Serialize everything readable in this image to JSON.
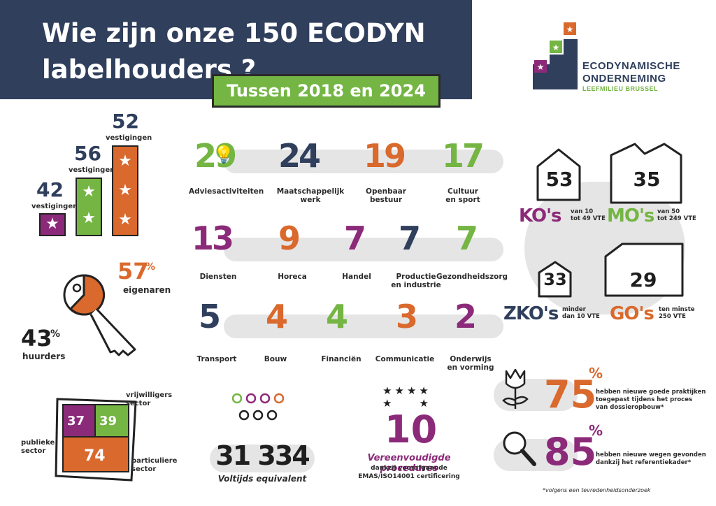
{
  "header": {
    "title": "Wie zijn onze 150 ECODYN\nlabelhouders ?",
    "subtitle": "Tussen 2018 en 2024"
  },
  "logo": {
    "line1": "ECODYNAMISCHE",
    "line2": "ONDERNEMING",
    "line3": "LEEFMILIEU BRUSSEL"
  },
  "stars": {
    "bars": [
      {
        "value": "42",
        "label": "vestigingen",
        "color": "#8c2a7a",
        "stars": 1
      },
      {
        "value": "56",
        "label": "vestigingen",
        "color": "#74b543",
        "stars": 2
      },
      {
        "value": "52",
        "label": "vestigingen",
        "color": "#d9692c",
        "stars": 3
      }
    ]
  },
  "ownership": {
    "owners_pct": "57",
    "owners_label": "eigenaren",
    "renters_pct": "43",
    "renters_label": "huurders",
    "pct_sign": "%"
  },
  "sectors": {
    "row1": [
      {
        "value": "29",
        "label": "Adviesactiviteiten",
        "color": "#74b543",
        "icon": "lightbulb-icon"
      },
      {
        "value": "24",
        "label": "Maatschappelijk\nwerk",
        "color": "#2f3f5c",
        "icon": "people-icon"
      },
      {
        "value": "19",
        "label": "Openbaar bestuur",
        "color": "#d9692c",
        "icon": "building-icon"
      },
      {
        "value": "17",
        "label": "Cultuur\nen sport",
        "color": "#74b543",
        "icon": "eye-icon"
      }
    ],
    "row2": [
      {
        "value": "13",
        "label": "Diensten",
        "color": "#8c2a7a",
        "icon": "hand-icon"
      },
      {
        "value": "9",
        "label": "Horeca",
        "color": "#d9692c",
        "icon": "cup-icon"
      },
      {
        "value": "7",
        "label": "Handel",
        "color": "#8c2a7a",
        "icon": "tag-icon"
      },
      {
        "value": "7",
        "label": "Productie\nen industrie",
        "color": "#2f3f5c",
        "icon": "gear-icon"
      },
      {
        "value": "7",
        "label": "Gezondheidszorg",
        "color": "#74b543",
        "icon": "heart-icon"
      }
    ],
    "row3": [
      {
        "value": "5",
        "label": "Transport",
        "color": "#2f3f5c",
        "icon": "wheel-icon"
      },
      {
        "value": "4",
        "label": "Bouw",
        "color": "#d9692c",
        "icon": "bricks-icon"
      },
      {
        "value": "4",
        "label": "Financiën",
        "color": "#74b543",
        "icon": "euro-icon"
      },
      {
        "value": "3",
        "label": "Communicatie",
        "color": "#d9692c",
        "icon": "chat-icon"
      },
      {
        "value": "2",
        "label": "Onderwijs\nen vorming",
        "color": "#8c2a7a",
        "icon": "graduation-cap-icon"
      }
    ]
  },
  "sizes": [
    {
      "value": "53",
      "abbr": "KO's",
      "desc": "van 10\ntot 49 VTE",
      "color": "#8c2a7a"
    },
    {
      "value": "35",
      "abbr": "MO's",
      "desc": "van 50\ntot 249 VTE",
      "color": "#74b543"
    },
    {
      "value": "33",
      "abbr": "ZKO's",
      "desc": "minder\ndan 10 VTE",
      "color": "#2f3f5c"
    },
    {
      "value": "29",
      "abbr": "GO's",
      "desc": "ten minste\n250 VTE",
      "color": "#d9692c"
    }
  ],
  "sector_split": {
    "vrijwilligers_value": "37",
    "vrijwilligers2_value": "39",
    "particuliere_value": "74",
    "label_vrijwilligers": "vrijwilligers\nsector",
    "label_publieke": "publieke\nsector",
    "label_particuliere": "particuliere\nsector"
  },
  "fte": {
    "value": "31 334",
    "label": "Voltijds equivalent"
  },
  "emas": {
    "value": "10",
    "title": "Vereenvoudigde procedures",
    "line2": "dankzij voorafgaande",
    "line3": "EMAS/ISO14001 certificering"
  },
  "survey": [
    {
      "value": "75",
      "text": "hebben nieuwe goede praktijken\ntoegepast tijdens het proces\nvan dossieropbouw*",
      "color": "#d9692c",
      "icon": "tulip-icon"
    },
    {
      "value": "85",
      "text": "hebben nieuwe wegen gevonden\ndankzij het referentiekader*",
      "color": "#8c2a7a",
      "icon": "magnifier-icon"
    }
  ],
  "footnote": "*volgens een tevredenheidsonderzoek",
  "colors": {
    "navy": "#2f3f5c",
    "green": "#74b543",
    "orange": "#d9692c",
    "purple": "#8c2a7a"
  }
}
